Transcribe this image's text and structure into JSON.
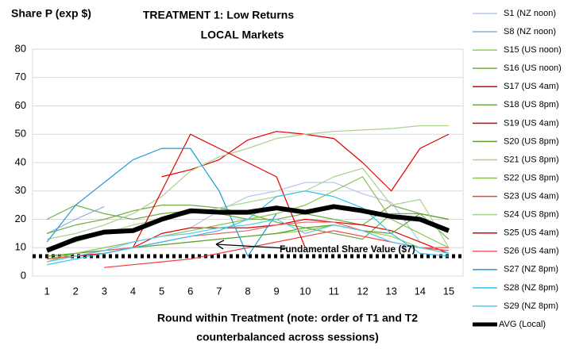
{
  "chart_data": {
    "type": "line",
    "title": "TREATMENT 1: Low Returns",
    "subtitle": "LOCAL Markets",
    "ylabel": "Share P (exp $)",
    "xlabel": [
      "Round within Treatment (note: order of T1 and T2",
      "counterbalanced across sessions)"
    ],
    "x": [
      1,
      2,
      3,
      4,
      5,
      6,
      7,
      8,
      9,
      10,
      11,
      12,
      13,
      14,
      15
    ],
    "xlim": [
      0.5,
      15.5
    ],
    "xticks": [
      1,
      2,
      3,
      4,
      5,
      6,
      7,
      8,
      9,
      10,
      11,
      12,
      13,
      14,
      15
    ],
    "ylim": [
      0,
      80
    ],
    "yticks": [
      0,
      10,
      20,
      30,
      40,
      50,
      60,
      70,
      80
    ],
    "grid": true,
    "reference_line": {
      "value": 7,
      "label": "Fundamental Share Value ($7)"
    },
    "series": [
      {
        "name": "S1 (NZ noon)",
        "color": "#b4c7e7",
        "values": [
          null,
          null,
          null,
          null,
          null,
          17,
          23,
          28,
          30,
          33,
          33,
          29,
          26,
          12,
          null
        ]
      },
      {
        "name": "S8 (NZ noon)",
        "color": "#8faadc",
        "values": [
          15,
          20,
          24.5,
          null,
          null,
          null,
          null,
          null,
          null,
          null,
          null,
          null,
          null,
          null,
          null
        ]
      },
      {
        "name": "S15 (US noon)",
        "color": "#92d050",
        "values": [
          6,
          8,
          9,
          10,
          11,
          12,
          13,
          14,
          15,
          16,
          18,
          16,
          14,
          10,
          8
        ]
      },
      {
        "name": "S16 (US noon)",
        "color": "#70ad47",
        "values": [
          20,
          25,
          22,
          20,
          22,
          23,
          22,
          20,
          20,
          22,
          20,
          18,
          25,
          22,
          20
        ]
      },
      {
        "name": "S17 (US 4am)",
        "color": "#e00000",
        "values": [
          null,
          null,
          null,
          null,
          35,
          37.5,
          41,
          48,
          51,
          50,
          48.5,
          40,
          30,
          45,
          50
        ]
      },
      {
        "name": "S18 (US 8pm)",
        "color": "#70ad47",
        "values": [
          15,
          18,
          20,
          23,
          25,
          25,
          24,
          22,
          19,
          17,
          15,
          13,
          22,
          22,
          13
        ]
      },
      {
        "name": "S19 (US 4am)",
        "color": "#e00000",
        "values": [
          6,
          7,
          8,
          10,
          15,
          17,
          17,
          17,
          18,
          20,
          19,
          18,
          16,
          12,
          8
        ]
      },
      {
        "name": "S20 (US 8pm)",
        "color": "#5ea030",
        "values": [
          7,
          8,
          9,
          10,
          11,
          12,
          13,
          14,
          15,
          17,
          18,
          16,
          15,
          22,
          20
        ]
      },
      {
        "name": "S21 (US 8pm)",
        "color": "#a9d18e",
        "values": [
          13,
          15,
          18,
          22,
          28,
          37,
          42,
          45,
          48.5,
          50,
          51,
          51.5,
          52,
          53,
          53
        ]
      },
      {
        "name": "S22 (US 8pm)",
        "color": "#8cc152",
        "values": [
          5,
          8,
          10,
          12,
          14,
          16,
          18,
          20,
          22,
          25,
          30,
          35,
          20,
          15,
          10
        ]
      },
      {
        "name": "S23 (US 4am)",
        "color": "#f04040",
        "values": [
          null,
          null,
          3,
          4,
          5,
          6,
          8,
          10,
          12,
          14,
          16,
          14,
          12,
          10,
          9
        ]
      },
      {
        "name": "S24 (US 8pm)",
        "color": "#a9d18e",
        "values": [
          10,
          12,
          15,
          18,
          20,
          22,
          24,
          26,
          28,
          30,
          35,
          38,
          25,
          27,
          10
        ]
      },
      {
        "name": "S25 (US 4am)",
        "color": "#e00000",
        "values": [
          null,
          null,
          null,
          10,
          30,
          50,
          45,
          40,
          35,
          10,
          null,
          null,
          null,
          null,
          null
        ]
      },
      {
        "name": "S26 (US 4am)",
        "color": "#f06060",
        "values": [
          6,
          7,
          9,
          10,
          12,
          14,
          15,
          16,
          18,
          19,
          19,
          16,
          12,
          10,
          10
        ]
      },
      {
        "name": "S27 (NZ 8pm)",
        "color": "#1f9bd0",
        "values": [
          12,
          25,
          33,
          41,
          45,
          45,
          30,
          7,
          22,
          null,
          null,
          null,
          null,
          null,
          null
        ]
      },
      {
        "name": "S28 (NZ 8pm)",
        "color": "#2ec4f0",
        "values": [
          4,
          6,
          8,
          10,
          12,
          14,
          16,
          20,
          28,
          30,
          28,
          24,
          15,
          8,
          7
        ]
      },
      {
        "name": "S29 (NZ 8pm)",
        "color": "#5bc8f0",
        "values": [
          5,
          7,
          9,
          12,
          14,
          15,
          17,
          18,
          20,
          15,
          18,
          16,
          12,
          10,
          8
        ]
      },
      {
        "name": "AVG (Local)",
        "color": "#000000",
        "values": [
          9,
          13,
          15.5,
          16,
          20,
          23,
          22.5,
          22.5,
          24,
          22.5,
          24.5,
          23,
          21,
          20,
          16
        ]
      }
    ]
  }
}
